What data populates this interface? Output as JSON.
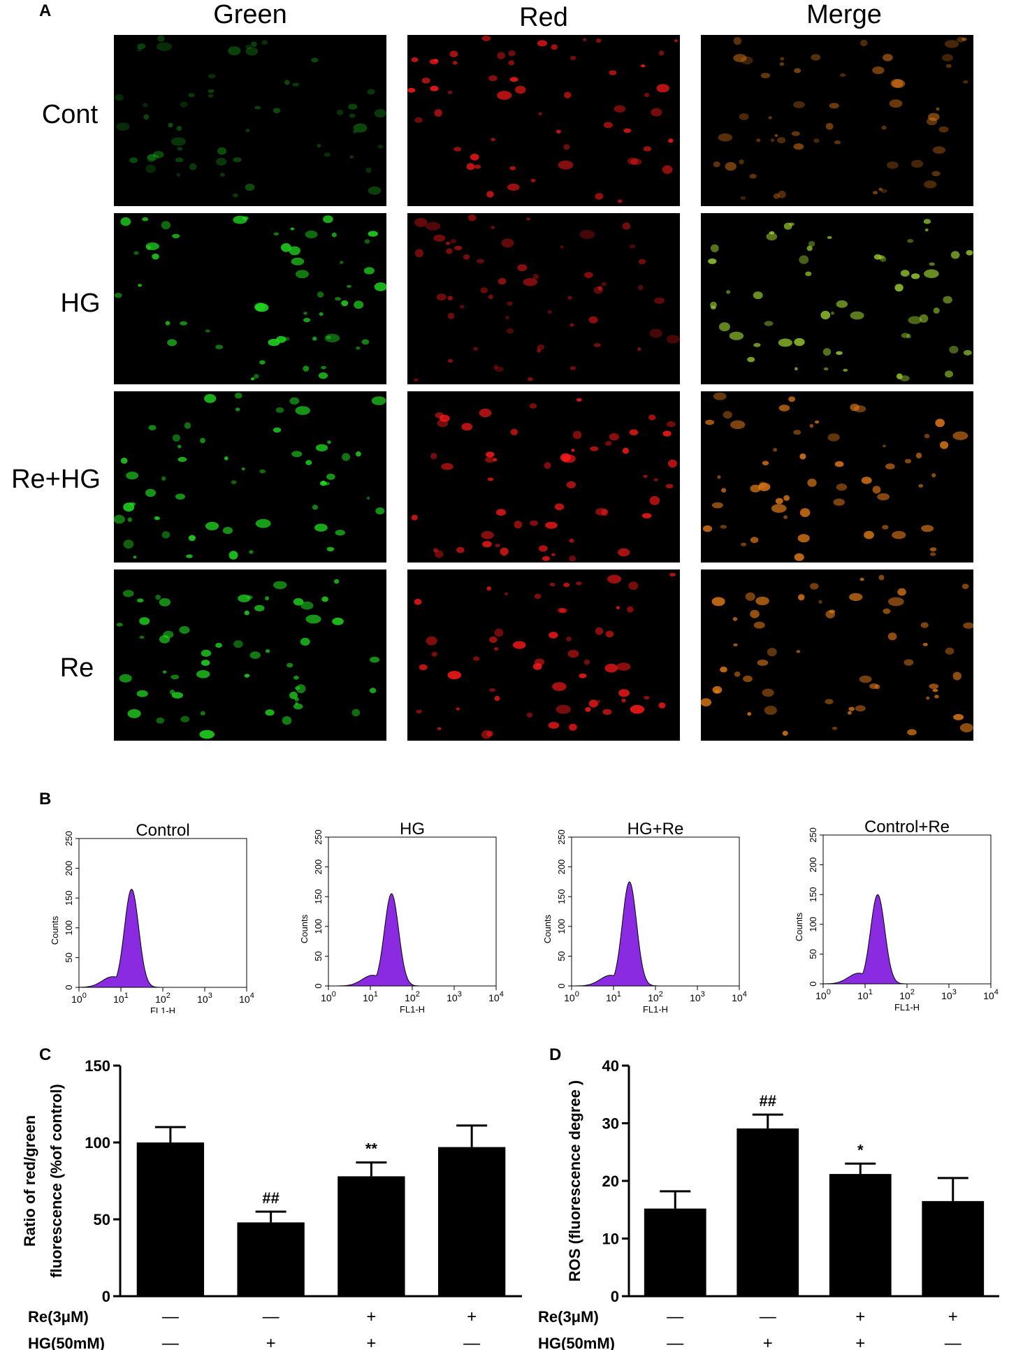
{
  "panel_labels": {
    "a": "A",
    "b": "B",
    "c": "C",
    "d": "D"
  },
  "panel_a": {
    "columns": [
      "Green",
      "Red",
      "Merge"
    ],
    "rows": [
      "Cont",
      "HG",
      "Re+HG",
      "Re"
    ],
    "colors": {
      "green": "#22dd22",
      "red": "#ff1a1a",
      "merge": "#e07a1a",
      "merge_hg": "#9acd32",
      "background": "#000000"
    }
  },
  "chart_data": [
    {
      "type": "histogram",
      "title": "Control",
      "xlabel": "FL1-H",
      "ylabel": "Counts",
      "xscale": "log",
      "xlim": [
        1,
        10000
      ],
      "ylim": [
        0,
        250
      ],
      "xticks": [
        "10^0",
        "10^1",
        "10^2",
        "10^3",
        "10^4"
      ],
      "yticks": [
        0,
        50,
        100,
        150,
        200,
        250
      ],
      "peak_x": 18,
      "peak_y": 165,
      "fill": "#8a2be2"
    },
    {
      "type": "histogram",
      "title": "HG",
      "xlabel": "FL1-H",
      "ylabel": "Counts",
      "xscale": "log",
      "xlim": [
        1,
        10000
      ],
      "ylim": [
        0,
        250
      ],
      "xticks": [
        "10^0",
        "10^1",
        "10^2",
        "10^3",
        "10^4"
      ],
      "yticks": [
        0,
        50,
        100,
        150,
        200,
        250
      ],
      "peak_x": 32,
      "peak_y": 155,
      "fill": "#8a2be2"
    },
    {
      "type": "histogram",
      "title": "HG+Re",
      "xlabel": "FL1-H",
      "ylabel": "Counts",
      "xscale": "log",
      "xlim": [
        1,
        10000
      ],
      "ylim": [
        0,
        250
      ],
      "xticks": [
        "10^0",
        "10^1",
        "10^2",
        "10^3",
        "10^4"
      ],
      "yticks": [
        0,
        50,
        100,
        150,
        200,
        250
      ],
      "peak_x": 24,
      "peak_y": 175,
      "fill": "#8a2be2"
    },
    {
      "type": "histogram",
      "title": "Control+Re",
      "xlabel": "FL1-H",
      "ylabel": "Counts",
      "xscale": "log",
      "xlim": [
        1,
        10000
      ],
      "ylim": [
        0,
        250
      ],
      "xticks": [
        "10^0",
        "10^1",
        "10^2",
        "10^3",
        "10^4"
      ],
      "yticks": [
        0,
        50,
        100,
        150,
        200,
        250
      ],
      "peak_x": 20,
      "peak_y": 150,
      "fill": "#8a2be2"
    },
    {
      "type": "bar",
      "ylabel": "Ratio of red/green fluorescence (%of control)",
      "ylabel_lines": [
        "Ratio of red/green",
        "fluorescence (%of control)"
      ],
      "ylim": [
        0,
        150
      ],
      "yticks": [
        0,
        50,
        100,
        150
      ],
      "values": [
        100,
        48,
        78,
        97
      ],
      "errors": [
        10,
        7,
        9,
        14
      ],
      "annotations": [
        "",
        "##",
        "**",
        ""
      ],
      "treatments": [
        {
          "label": "Re(3μM)",
          "signs": [
            "—",
            "—",
            "+",
            "+"
          ]
        },
        {
          "label": "HG(50mM)",
          "signs": [
            "—",
            "+",
            "+",
            "—"
          ]
        }
      ]
    },
    {
      "type": "bar",
      "ylabel": "ROS (fluorescence degree )",
      "ylim": [
        0,
        40
      ],
      "yticks": [
        0,
        10,
        20,
        30,
        40
      ],
      "values": [
        15.2,
        29.1,
        21.2,
        16.5
      ],
      "errors": [
        3,
        2.4,
        1.8,
        4
      ],
      "annotations": [
        "",
        "##",
        "*",
        ""
      ],
      "treatments": [
        {
          "label": "Re(3μM)",
          "signs": [
            "—",
            "—",
            "+",
            "+"
          ]
        },
        {
          "label": "HG(50mM)",
          "signs": [
            "—",
            "+",
            "+",
            "—"
          ]
        }
      ]
    }
  ]
}
